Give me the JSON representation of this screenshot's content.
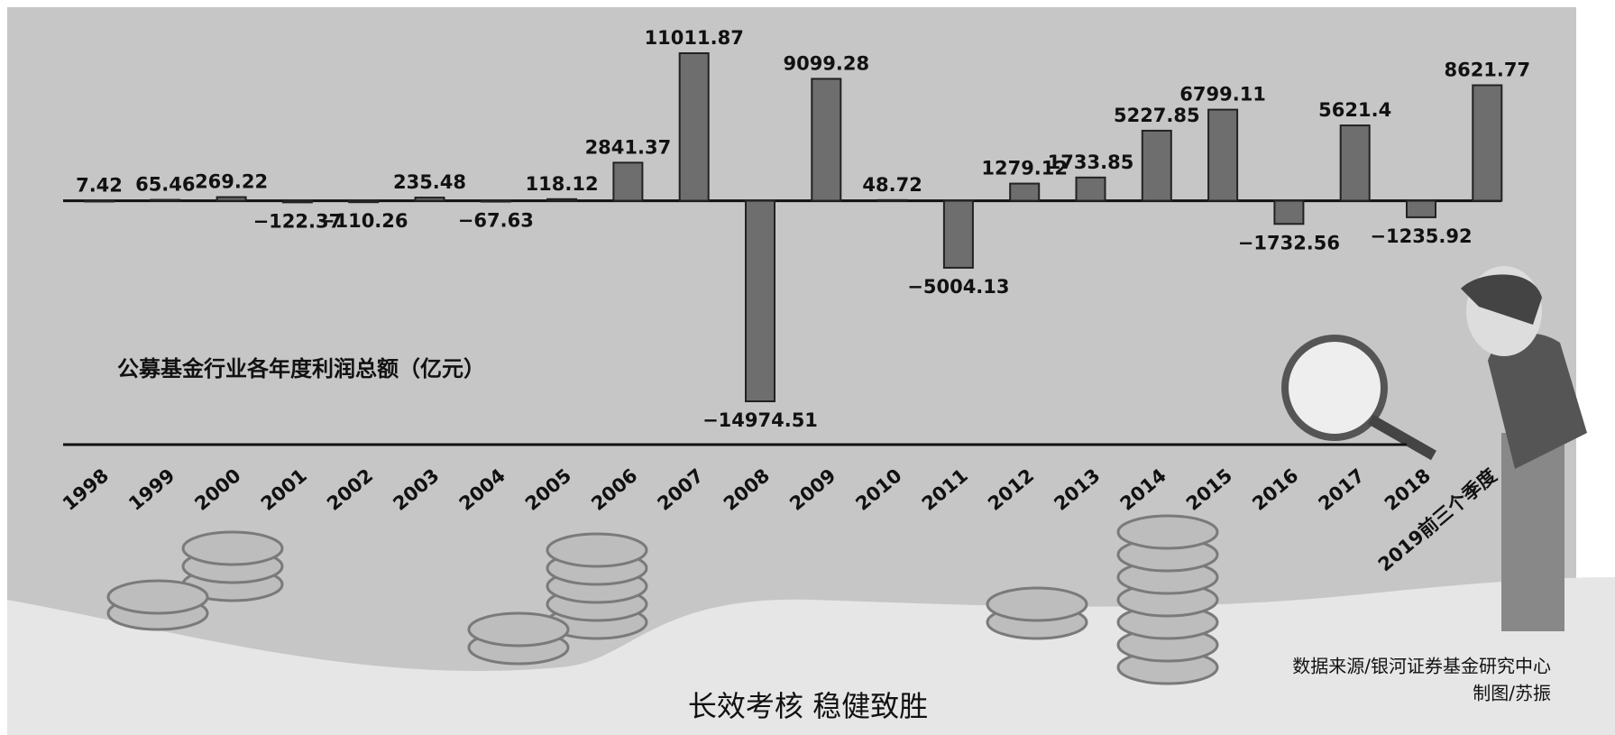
{
  "chart_data": {
    "type": "bar",
    "title": "公募基金行业各年度利润总额（亿元）",
    "categories": [
      "1998",
      "1999",
      "2000",
      "2001",
      "2002",
      "2003",
      "2004",
      "2005",
      "2006",
      "2007",
      "2008",
      "2009",
      "2010",
      "2011",
      "2012",
      "2013",
      "2014",
      "2015",
      "2016",
      "2017",
      "2018",
      "2019前三个季度"
    ],
    "values": [
      7.42,
      65.46,
      269.22,
      -122.37,
      -110.26,
      235.48,
      -67.63,
      118.12,
      2841.37,
      11011.87,
      -14974.51,
      9099.28,
      48.72,
      -5004.13,
      1279.12,
      1733.85,
      5227.85,
      6799.11,
      -1732.56,
      5621.4,
      -1235.92,
      8621.77
    ],
    "value_labels": [
      "7.42",
      "65.46",
      "269.22",
      "−122.37",
      "−110.26",
      "235.48",
      "−67.63",
      "118.12",
      "2841.37",
      "11011.87",
      "−14974.51",
      "9099.28",
      "48.72",
      "−5004.13",
      "1279.12",
      "1733.85",
      "5227.85",
      "6799.11",
      "−1732.56",
      "5621.4",
      "−1235.92",
      "8621.77"
    ],
    "color": "#6e6e6e",
    "caption": "长效考核  稳健致胜",
    "source": "数据来源/银河证券基金研究中心",
    "credit": "制图/苏振"
  }
}
